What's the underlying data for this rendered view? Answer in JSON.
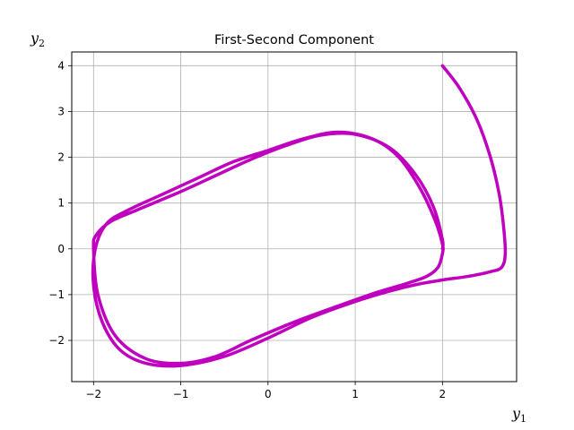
{
  "chart_data": {
    "type": "line",
    "title": "First-Second Component",
    "xlabel": {
      "base": "y",
      "sub": "1"
    },
    "ylabel": {
      "base": "y",
      "sub": "2"
    },
    "xlim": [
      -2.25,
      2.85
    ],
    "ylim": [
      -2.9,
      4.3
    ],
    "xticks": [
      -2,
      -1,
      0,
      1,
      2
    ],
    "xtick_labels": [
      "−2",
      "−1",
      "0",
      "1",
      "2"
    ],
    "yticks": [
      -2,
      -1,
      0,
      1,
      2,
      3,
      4
    ],
    "ytick_labels": [
      "−2",
      "−1",
      "0",
      "1",
      "2",
      "3",
      "4"
    ],
    "grid": true,
    "line_color": "#bf00bf",
    "series": [
      {
        "x": [
          2.0,
          2.2,
          2.4,
          2.55,
          2.65,
          2.7,
          2.72,
          2.68,
          2.55,
          2.3,
          2.0,
          1.7,
          1.4,
          1.0,
          0.5,
          0.0,
          -0.5,
          -1.0,
          -1.4,
          -1.7,
          -1.9,
          -2.0,
          -1.98,
          -1.85,
          -1.6,
          -1.2,
          -0.8,
          -0.4,
          0.0,
          0.4,
          0.8,
          1.2,
          1.5,
          1.75,
          1.92,
          2.0,
          2.0,
          1.95,
          1.82,
          1.6,
          1.25,
          0.8,
          0.3,
          -0.2,
          -0.6,
          -1.0,
          -1.4,
          -1.75,
          -1.95,
          -2.0,
          -1.97,
          -1.8,
          -1.5,
          -1.0,
          -0.6,
          -0.2,
          0.2,
          0.6,
          1.0,
          1.4,
          1.7,
          1.9,
          2.0,
          2.0
        ],
        "y": [
          4.0,
          3.5,
          2.8,
          2.0,
          1.2,
          0.5,
          -0.1,
          -0.4,
          -0.5,
          -0.6,
          -0.68,
          -0.78,
          -0.92,
          -1.15,
          -1.5,
          -1.95,
          -2.35,
          -2.55,
          -2.5,
          -2.2,
          -1.6,
          -0.8,
          0.0,
          0.55,
          0.85,
          1.2,
          1.55,
          1.9,
          2.15,
          2.4,
          2.55,
          2.4,
          2.0,
          1.3,
          0.6,
          0.1,
          -0.1,
          -0.4,
          -0.6,
          -0.75,
          -0.95,
          -1.25,
          -1.6,
          -2.0,
          -2.35,
          -2.5,
          -2.4,
          -1.9,
          -1.0,
          0.0,
          0.3,
          0.6,
          0.85,
          1.25,
          1.6,
          1.95,
          2.25,
          2.48,
          2.5,
          2.2,
          1.6,
          0.9,
          0.2,
          0.0
        ]
      }
    ]
  }
}
